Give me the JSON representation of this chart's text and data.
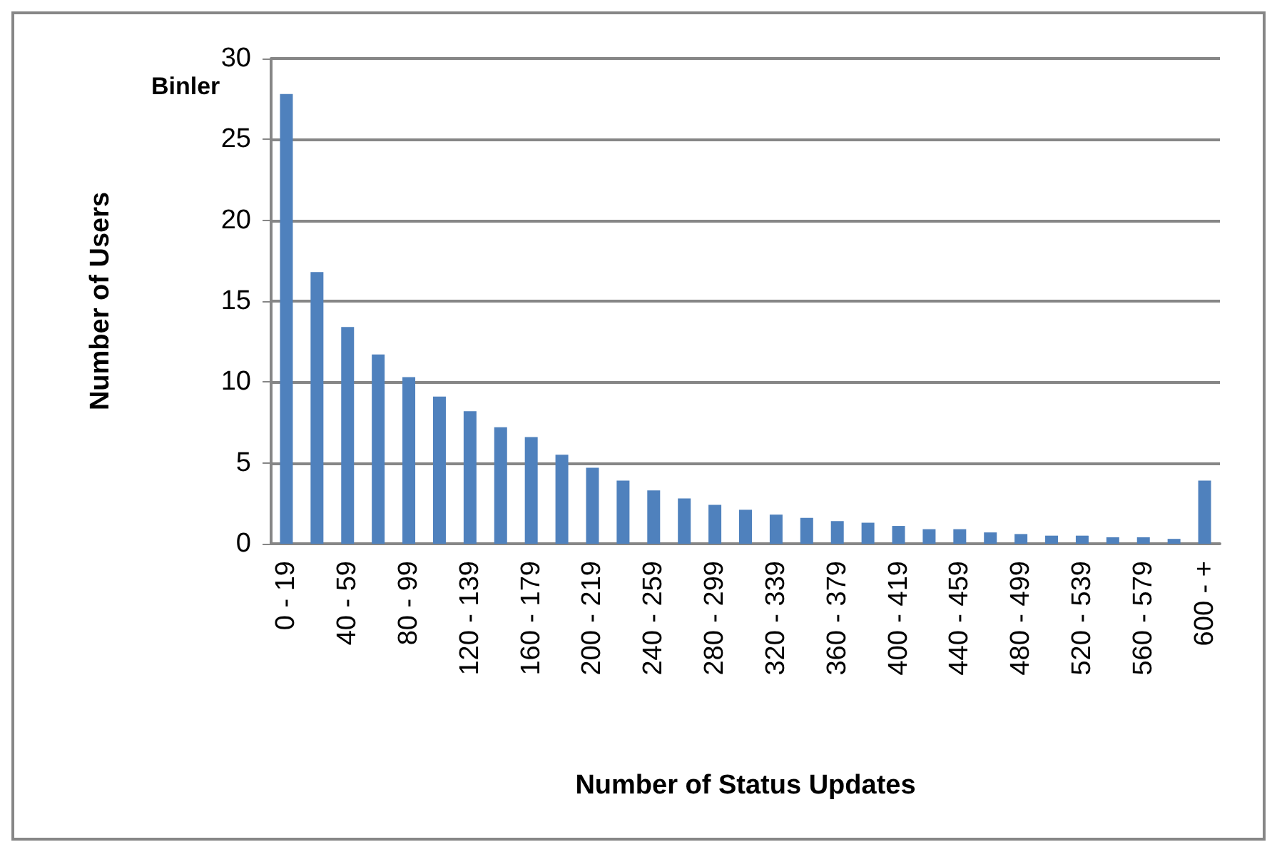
{
  "chart_data": {
    "type": "bar",
    "xlabel": "Number of Status Updates",
    "ylabel": "Number of Users",
    "annotations": [
      "Binler"
    ],
    "categories": [
      "0 - 19",
      null,
      "40 - 59",
      null,
      "80 - 99",
      null,
      "120 - 139",
      null,
      "160 - 179",
      null,
      "200 - 219",
      null,
      "240 - 259",
      null,
      "280 - 299",
      null,
      "320 - 339",
      null,
      "360 - 379",
      null,
      "400 - 419",
      null,
      "440 - 459",
      null,
      "480 - 499",
      null,
      "520 - 539",
      null,
      "560 - 579",
      null,
      "600 - +"
    ],
    "values": [
      27.8,
      16.8,
      13.4,
      11.7,
      10.3,
      9.1,
      8.2,
      7.2,
      6.6,
      5.5,
      4.7,
      3.9,
      3.3,
      2.8,
      2.4,
      2.1,
      1.8,
      1.6,
      1.4,
      1.3,
      1.1,
      0.9,
      0.9,
      0.7,
      0.6,
      0.5,
      0.5,
      0.4,
      0.4,
      0.3,
      3.9
    ],
    "color": "#4f81bd",
    "ylim": [
      0,
      30
    ],
    "yticks": [
      0,
      5,
      10,
      15,
      20,
      25,
      30
    ],
    "grid": "y"
  }
}
